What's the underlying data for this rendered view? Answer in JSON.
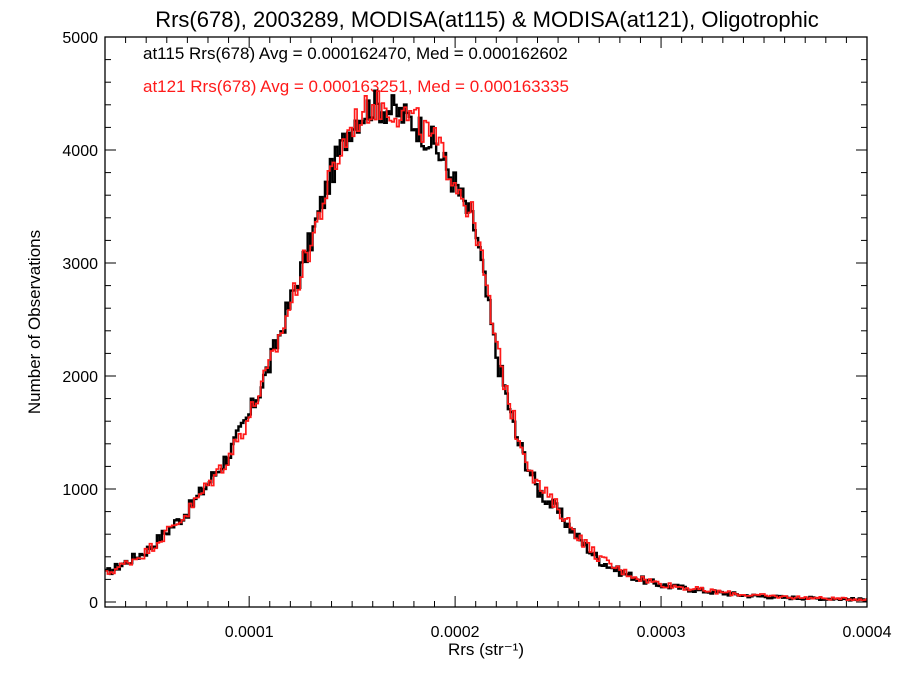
{
  "chart_data": {
    "type": "histogram",
    "title": "Rrs(678), 2003289, MODISA(at115) & MODISA(at121), Oligotrophic",
    "xlabel": "Rrs (str⁻¹)",
    "ylabel": "Number of Observations",
    "xlim": [
      3e-05,
      0.0004
    ],
    "ylim": [
      0,
      5000
    ],
    "xticks": [
      0.0001,
      0.0002,
      0.0003,
      0.0004
    ],
    "xtick_labels": [
      "0.0001",
      "0.0002",
      "0.0003",
      "0.0004"
    ],
    "yticks": [
      0,
      1000,
      2000,
      3000,
      4000,
      5000
    ],
    "ytick_labels": [
      "0",
      "1000",
      "2000",
      "3000",
      "4000",
      "5000"
    ],
    "grid": false,
    "legend_position": "top-left",
    "series": [
      {
        "name": "at115",
        "label": "at115 Rrs(678) Avg = 0.000162470, Med = 0.000162602",
        "color": "#000000",
        "mean": 0.00016247,
        "median": 0.000162602,
        "envelope_x": [
          3e-05,
          5e-05,
          7e-05,
          9e-05,
          0.0001,
          0.00011,
          0.00012,
          0.00013,
          0.00014,
          0.00015,
          0.00016,
          0.00017,
          0.00018,
          0.00019,
          0.0002,
          0.00021,
          0.00022,
          0.00023,
          0.00024,
          0.00025,
          0.00026,
          0.00027,
          0.00028,
          0.00029,
          0.0003,
          0.00032,
          0.00034,
          0.00036,
          0.00038,
          0.0004
        ],
        "envelope_y": [
          250,
          450,
          800,
          1300,
          1650,
          2100,
          2650,
          3200,
          3800,
          4250,
          4400,
          4350,
          4250,
          4050,
          3700,
          3300,
          2200,
          1450,
          1000,
          800,
          560,
          370,
          270,
          200,
          150,
          100,
          60,
          40,
          30,
          20
        ]
      },
      {
        "name": "at121",
        "label": "at121 Rrs(678) Avg = 0.000163251, Med = 0.000163335",
        "color": "#ff1a1a",
        "mean": 0.000163251,
        "median": 0.000163335,
        "envelope_x": [
          3e-05,
          5e-05,
          7e-05,
          9e-05,
          0.0001,
          0.00011,
          0.00012,
          0.00013,
          0.00014,
          0.00015,
          0.00016,
          0.00017,
          0.00018,
          0.00019,
          0.0002,
          0.00021,
          0.00022,
          0.00023,
          0.00024,
          0.00025,
          0.00026,
          0.00027,
          0.00028,
          0.00029,
          0.0003,
          0.00032,
          0.00034,
          0.00036,
          0.00038,
          0.0004
        ],
        "envelope_y": [
          240,
          440,
          790,
          1280,
          1640,
          2080,
          2630,
          3180,
          3780,
          4230,
          4400,
          4360,
          4270,
          4080,
          3740,
          3340,
          2260,
          1500,
          1040,
          830,
          580,
          390,
          280,
          210,
          160,
          105,
          65,
          45,
          32,
          22
        ]
      }
    ]
  }
}
